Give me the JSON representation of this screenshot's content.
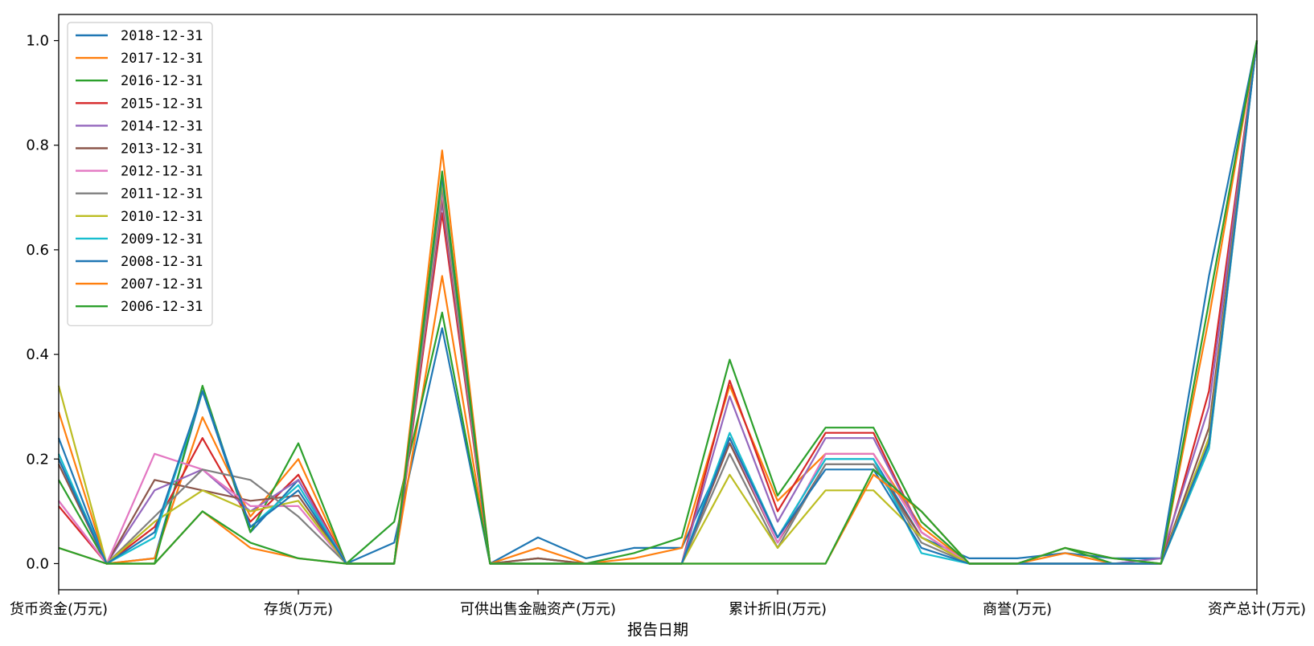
{
  "chart_data": {
    "type": "line",
    "xlabel": "报告日期",
    "ylabel": "",
    "ylim": [
      -0.05,
      1.05
    ],
    "yticks": [
      "0.0",
      "0.2",
      "0.4",
      "0.6",
      "0.8",
      "1.0"
    ],
    "xtick_labels": [
      "货币资金(万元)",
      "存货(万元)",
      "可供出售金融资产(万元)",
      "累计折旧(万元)",
      "商誉(万元)",
      "资产总计(万元)"
    ],
    "xtick_positions": [
      0,
      5,
      10,
      15,
      20,
      25
    ],
    "x_points": 26,
    "legend_position": "upper-left",
    "grid": false,
    "series": [
      {
        "name": "2018-12-31",
        "color": "#1f77b4",
        "values": [
          0.24,
          0.0,
          0.01,
          0.33,
          0.06,
          0.16,
          0.0,
          0.04,
          0.45,
          0.0,
          0.05,
          0.01,
          0.03,
          0.03,
          0.23,
          0.05,
          0.2,
          0.2,
          0.05,
          0.01,
          0.01,
          0.02,
          0.01,
          0.01,
          0.55,
          1.0
        ]
      },
      {
        "name": "2017-12-31",
        "color": "#ff7f0e",
        "values": [
          0.29,
          0.0,
          0.01,
          0.28,
          0.09,
          0.2,
          0.0,
          0.0,
          0.55,
          0.0,
          0.03,
          0.0,
          0.01,
          0.03,
          0.34,
          0.12,
          0.21,
          0.21,
          0.07,
          0.0,
          0.0,
          0.02,
          0.0,
          0.0,
          0.22,
          1.0
        ]
      },
      {
        "name": "2016-12-31",
        "color": "#2ca02c",
        "values": [
          0.16,
          0.0,
          0.0,
          0.34,
          0.06,
          0.23,
          0.0,
          0.08,
          0.48,
          0.0,
          0.01,
          0.0,
          0.02,
          0.05,
          0.39,
          0.13,
          0.26,
          0.26,
          0.08,
          0.0,
          0.0,
          0.03,
          0.0,
          0.0,
          0.24,
          1.0
        ]
      },
      {
        "name": "2015-12-31",
        "color": "#d62728",
        "values": [
          0.11,
          0.0,
          0.07,
          0.24,
          0.08,
          0.17,
          0.0,
          0.0,
          0.67,
          0.0,
          0.0,
          0.0,
          0.0,
          0.0,
          0.35,
          0.1,
          0.25,
          0.25,
          0.06,
          0.0,
          0.0,
          0.0,
          0.0,
          0.0,
          0.33,
          1.0
        ]
      },
      {
        "name": "2014-12-31",
        "color": "#9467bd",
        "values": [
          0.12,
          0.0,
          0.14,
          0.18,
          0.1,
          0.16,
          0.0,
          0.0,
          0.69,
          0.0,
          0.0,
          0.0,
          0.0,
          0.0,
          0.32,
          0.08,
          0.24,
          0.24,
          0.06,
          0.0,
          0.0,
          0.0,
          0.0,
          0.01,
          0.3,
          1.0
        ]
      },
      {
        "name": "2013-12-31",
        "color": "#8c564b",
        "values": [
          0.19,
          0.0,
          0.16,
          0.14,
          0.12,
          0.13,
          0.0,
          0.0,
          0.7,
          0.0,
          0.01,
          0.0,
          0.0,
          0.0,
          0.23,
          0.04,
          0.19,
          0.19,
          0.05,
          0.0,
          0.0,
          0.0,
          0.0,
          0.0,
          0.26,
          1.0
        ]
      },
      {
        "name": "2012-12-31",
        "color": "#e377c2",
        "values": [
          0.12,
          0.0,
          0.21,
          0.18,
          0.11,
          0.11,
          0.0,
          0.0,
          0.71,
          0.0,
          0.0,
          0.0,
          0.0,
          0.0,
          0.24,
          0.04,
          0.21,
          0.21,
          0.06,
          0.0,
          0.0,
          0.0,
          0.0,
          0.0,
          0.24,
          1.0
        ]
      },
      {
        "name": "2011-12-31",
        "color": "#7f7f7f",
        "values": [
          0.2,
          0.0,
          0.09,
          0.18,
          0.16,
          0.09,
          0.0,
          0.0,
          0.72,
          0.0,
          0.0,
          0.0,
          0.0,
          0.0,
          0.21,
          0.03,
          0.19,
          0.19,
          0.04,
          0.0,
          0.0,
          0.0,
          0.0,
          0.0,
          0.24,
          1.0
        ]
      },
      {
        "name": "2010-12-31",
        "color": "#bcbd22",
        "values": [
          0.34,
          0.0,
          0.08,
          0.14,
          0.1,
          0.12,
          0.0,
          0.0,
          0.73,
          0.0,
          0.0,
          0.0,
          0.0,
          0.0,
          0.17,
          0.03,
          0.14,
          0.14,
          0.05,
          0.0,
          0.0,
          0.0,
          0.0,
          0.0,
          0.24,
          1.0
        ]
      },
      {
        "name": "2009-12-31",
        "color": "#17becf",
        "values": [
          0.21,
          0.0,
          0.05,
          0.33,
          0.07,
          0.15,
          0.0,
          0.0,
          0.74,
          0.0,
          0.0,
          0.0,
          0.0,
          0.0,
          0.25,
          0.05,
          0.2,
          0.2,
          0.02,
          0.0,
          0.0,
          0.0,
          0.0,
          0.0,
          0.22,
          1.0
        ]
      },
      {
        "name": "2008-12-31",
        "color": "#1f77b4",
        "values": [
          0.2,
          0.0,
          0.06,
          0.33,
          0.07,
          0.14,
          0.0,
          0.0,
          0.74,
          0.0,
          0.0,
          0.0,
          0.0,
          0.0,
          0.24,
          0.05,
          0.18,
          0.18,
          0.03,
          0.0,
          0.0,
          0.0,
          0.0,
          0.0,
          0.23,
          1.0
        ]
      },
      {
        "name": "2007-12-31",
        "color": "#ff7f0e",
        "values": [
          0.03,
          0.0,
          0.0,
          0.1,
          0.03,
          0.01,
          0.0,
          0.0,
          0.79,
          0.0,
          0.0,
          0.0,
          0.0,
          0.0,
          0.0,
          0.0,
          0.0,
          0.17,
          0.1,
          0.0,
          0.0,
          0.03,
          0.01,
          0.0,
          0.47,
          1.0
        ]
      },
      {
        "name": "2006-12-31",
        "color": "#2ca02c",
        "values": [
          0.03,
          0.0,
          0.0,
          0.1,
          0.04,
          0.01,
          0.0,
          0.0,
          0.75,
          0.0,
          0.0,
          0.0,
          0.0,
          0.0,
          0.0,
          0.0,
          0.0,
          0.18,
          0.1,
          0.0,
          0.0,
          0.03,
          0.01,
          0.0,
          0.5,
          1.0
        ]
      }
    ]
  }
}
